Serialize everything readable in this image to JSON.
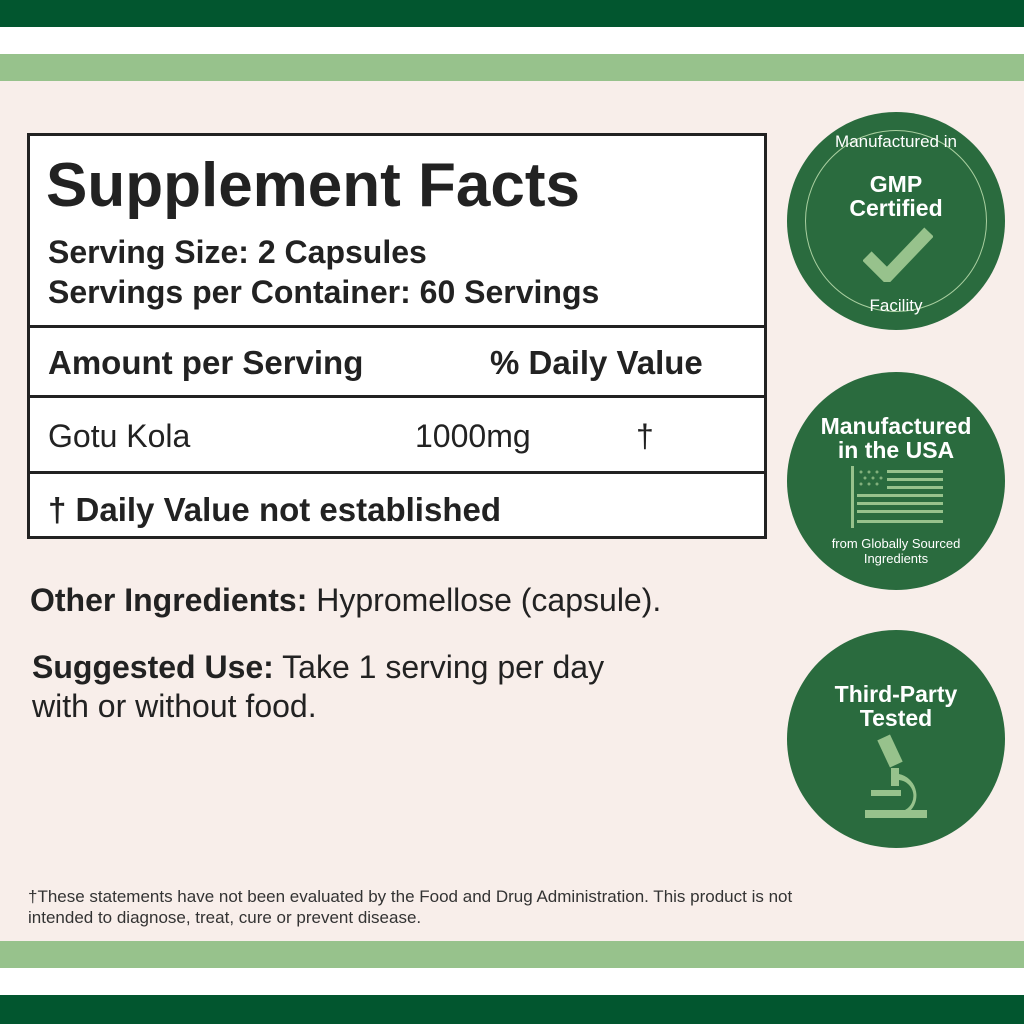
{
  "colors": {
    "dark_green": "#02562f",
    "light_green": "#97c28c",
    "badge_green": "#2a6b3e",
    "background": "#f8eeea"
  },
  "facts": {
    "title": "Supplement Facts",
    "serving_size": "Serving Size: 2 Capsules",
    "servings_per_container": "Servings per Container: 60 Servings",
    "amount_header": "Amount per Serving",
    "dv_header": "% Daily Value",
    "ingredient": {
      "name": "Gotu Kola",
      "amount": "1000mg",
      "dv": "†"
    },
    "footnote": "† Daily Value not established"
  },
  "other": {
    "label": "Other Ingredients:",
    "value": " Hypromellose (capsule)."
  },
  "use": {
    "label": "Suggested Use:",
    "value": " Take 1 serving per day",
    "line2": "with or without food."
  },
  "badges": [
    {
      "top": "Manufactured in",
      "main1": "GMP",
      "main2": "Certified",
      "bottom": "Facility",
      "icon": "checkmark-icon"
    },
    {
      "main1": "Manufactured",
      "main2": "in the USA",
      "sub1": "from Globally Sourced",
      "sub2": "Ingredients",
      "icon": "us-flag-icon"
    },
    {
      "main1": "Third-Party",
      "main2": "Tested",
      "icon": "microscope-icon"
    }
  ],
  "disclaimer": {
    "line1": "†These statements have not been evaluated by the Food and Drug Administration. This product is not",
    "line2": "intended to diagnose, treat, cure or prevent disease."
  }
}
